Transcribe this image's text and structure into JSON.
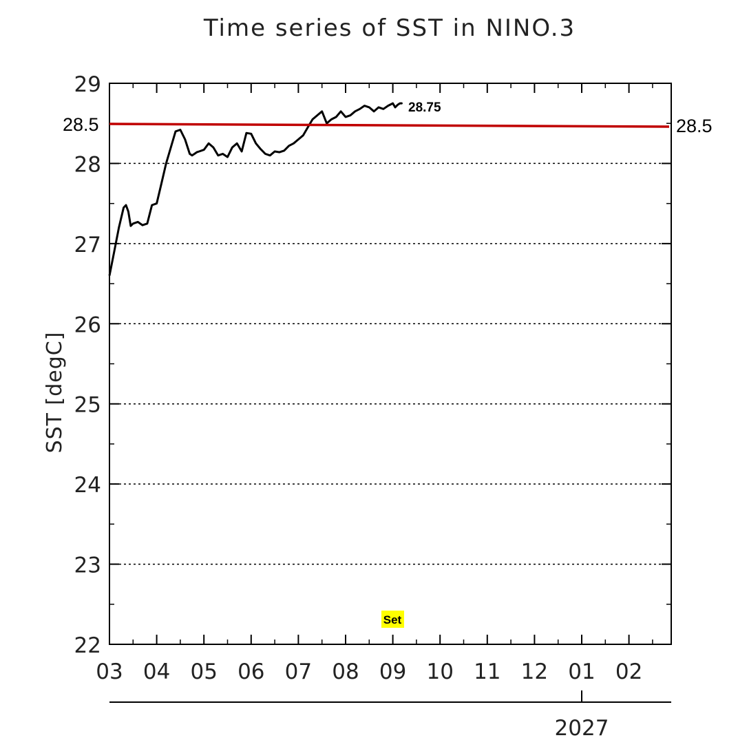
{
  "chart_data": {
    "type": "line",
    "title": "Time series of SST in NINO.3",
    "ylabel": "SST [degC]",
    "xlabel": "",
    "ylim": [
      22,
      29
    ],
    "yticks": [
      "22",
      "23",
      "24",
      "25",
      "26",
      "27",
      "28",
      "29"
    ],
    "x_categories": [
      "03",
      "04",
      "05",
      "06",
      "07",
      "08",
      "09",
      "10",
      "11",
      "12",
      "01",
      "02"
    ],
    "year_label": "2027",
    "grid": "horizontal dotted",
    "series": [
      {
        "color": "#000000",
        "x": [
          0.0,
          0.1,
          0.2,
          0.3,
          0.35,
          0.4,
          0.45,
          0.5,
          0.6,
          0.7,
          0.8,
          0.9,
          1.0,
          1.1,
          1.2,
          1.3,
          1.4,
          1.5,
          1.6,
          1.7,
          1.75,
          1.8,
          1.85,
          1.9,
          2.0,
          2.1,
          2.2,
          2.3,
          2.4,
          2.5,
          2.6,
          2.7,
          2.8,
          2.9,
          3.0,
          3.1,
          3.2,
          3.3,
          3.4,
          3.5,
          3.6,
          3.7,
          3.8,
          3.9,
          4.0,
          4.1,
          4.2,
          4.3,
          4.4,
          4.5,
          4.6,
          4.7,
          4.8,
          4.9,
          5.0,
          5.1,
          5.2,
          5.3,
          5.4,
          5.5,
          5.6,
          5.7,
          5.8,
          5.9,
          6.0,
          6.05,
          6.1,
          6.15,
          6.2
        ],
        "values": [
          26.6,
          26.9,
          27.2,
          27.45,
          27.48,
          27.4,
          27.22,
          27.25,
          27.27,
          27.23,
          27.25,
          27.48,
          27.5,
          27.75,
          28.0,
          28.2,
          28.4,
          28.42,
          28.3,
          28.12,
          28.1,
          28.12,
          28.14,
          28.15,
          28.17,
          28.25,
          28.2,
          28.1,
          28.12,
          28.08,
          28.2,
          28.25,
          28.15,
          28.38,
          28.37,
          28.25,
          28.18,
          28.12,
          28.1,
          28.15,
          28.14,
          28.16,
          28.22,
          28.25,
          28.3,
          28.35,
          28.45,
          28.55,
          28.6,
          28.65,
          28.5,
          28.55,
          28.58,
          28.65,
          28.58,
          28.6,
          28.65,
          28.68,
          28.72,
          28.7,
          28.65,
          28.7,
          28.68,
          28.72,
          28.75,
          28.7,
          28.73,
          28.75,
          28.75
        ]
      }
    ],
    "reference_line": {
      "value": 28.5,
      "color": "#c00000",
      "label_left": "28.5",
      "label_right": "28.5"
    },
    "annotations": {
      "last_value": "28.75",
      "marker": "Set",
      "marker_highlight": "#ffff00"
    }
  }
}
